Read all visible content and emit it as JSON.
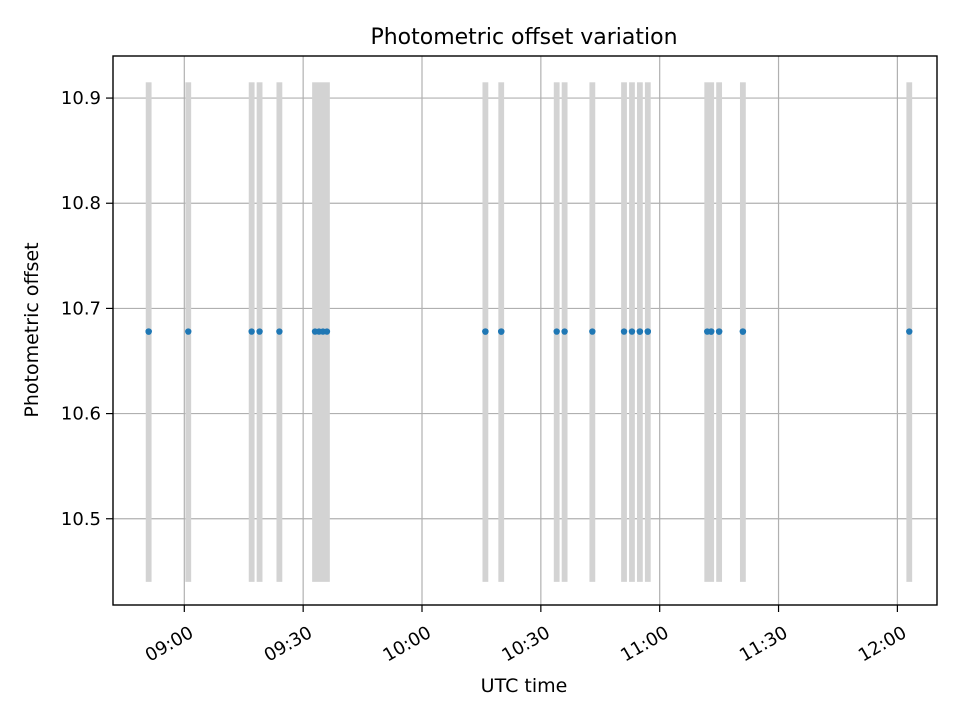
{
  "chart_data": {
    "type": "scatter",
    "title": "Photometric offset variation",
    "xlabel": "UTC time",
    "ylabel": "Photometric offset",
    "grid": true,
    "marker_color": "#1f77b4",
    "band_color": "#d3d3d3",
    "grid_color": "#b0b0b0",
    "xlim": [
      "08:42",
      "12:10"
    ],
    "ylim": [
      10.418,
      10.94
    ],
    "band_range": [
      10.44,
      10.915
    ],
    "x_ticks": [
      "09:00",
      "09:30",
      "10:00",
      "10:30",
      "11:00",
      "11:30",
      "12:00"
    ],
    "y_ticks": [
      "10.5",
      "10.6",
      "10.7",
      "10.8",
      "10.9"
    ],
    "series": [
      {
        "x": [
          "08:51",
          "08:51",
          "09:01",
          "09:17",
          "09:19",
          "09:24",
          "09:33",
          "09:34",
          "09:35",
          "09:36",
          "10:16",
          "10:16",
          "10:20",
          "10:20",
          "10:34",
          "10:36",
          "10:43",
          "10:51",
          "10:53",
          "10:55",
          "10:55",
          "10:57",
          "10:57",
          "11:12",
          "11:13",
          "11:13",
          "11:15",
          "11:15",
          "11:21",
          "11:21",
          "12:03"
        ],
        "y": [
          10.678,
          10.678,
          10.678,
          10.678,
          10.678,
          10.678,
          10.678,
          10.678,
          10.678,
          10.678,
          10.678,
          10.678,
          10.678,
          10.678,
          10.678,
          10.678,
          10.678,
          10.678,
          10.678,
          10.678,
          10.678,
          10.678,
          10.678,
          10.678,
          10.678,
          10.678,
          10.678,
          10.678,
          10.678,
          10.678,
          10.678
        ]
      }
    ],
    "bands": [
      {
        "x": "08:51"
      },
      {
        "x": "09:01"
      },
      {
        "x": "09:17"
      },
      {
        "x": "09:19"
      },
      {
        "x": "09:24"
      },
      {
        "x": "09:33",
        "x_end": "09:36"
      },
      {
        "x": "10:16"
      },
      {
        "x": "10:20"
      },
      {
        "x": "10:34"
      },
      {
        "x": "10:36"
      },
      {
        "x": "10:43"
      },
      {
        "x": "10:51"
      },
      {
        "x": "10:53"
      },
      {
        "x": "10:55"
      },
      {
        "x": "10:57"
      },
      {
        "x": "11:12",
        "x_end": "11:13"
      },
      {
        "x": "11:15"
      },
      {
        "x": "11:21"
      },
      {
        "x": "12:03"
      }
    ]
  }
}
